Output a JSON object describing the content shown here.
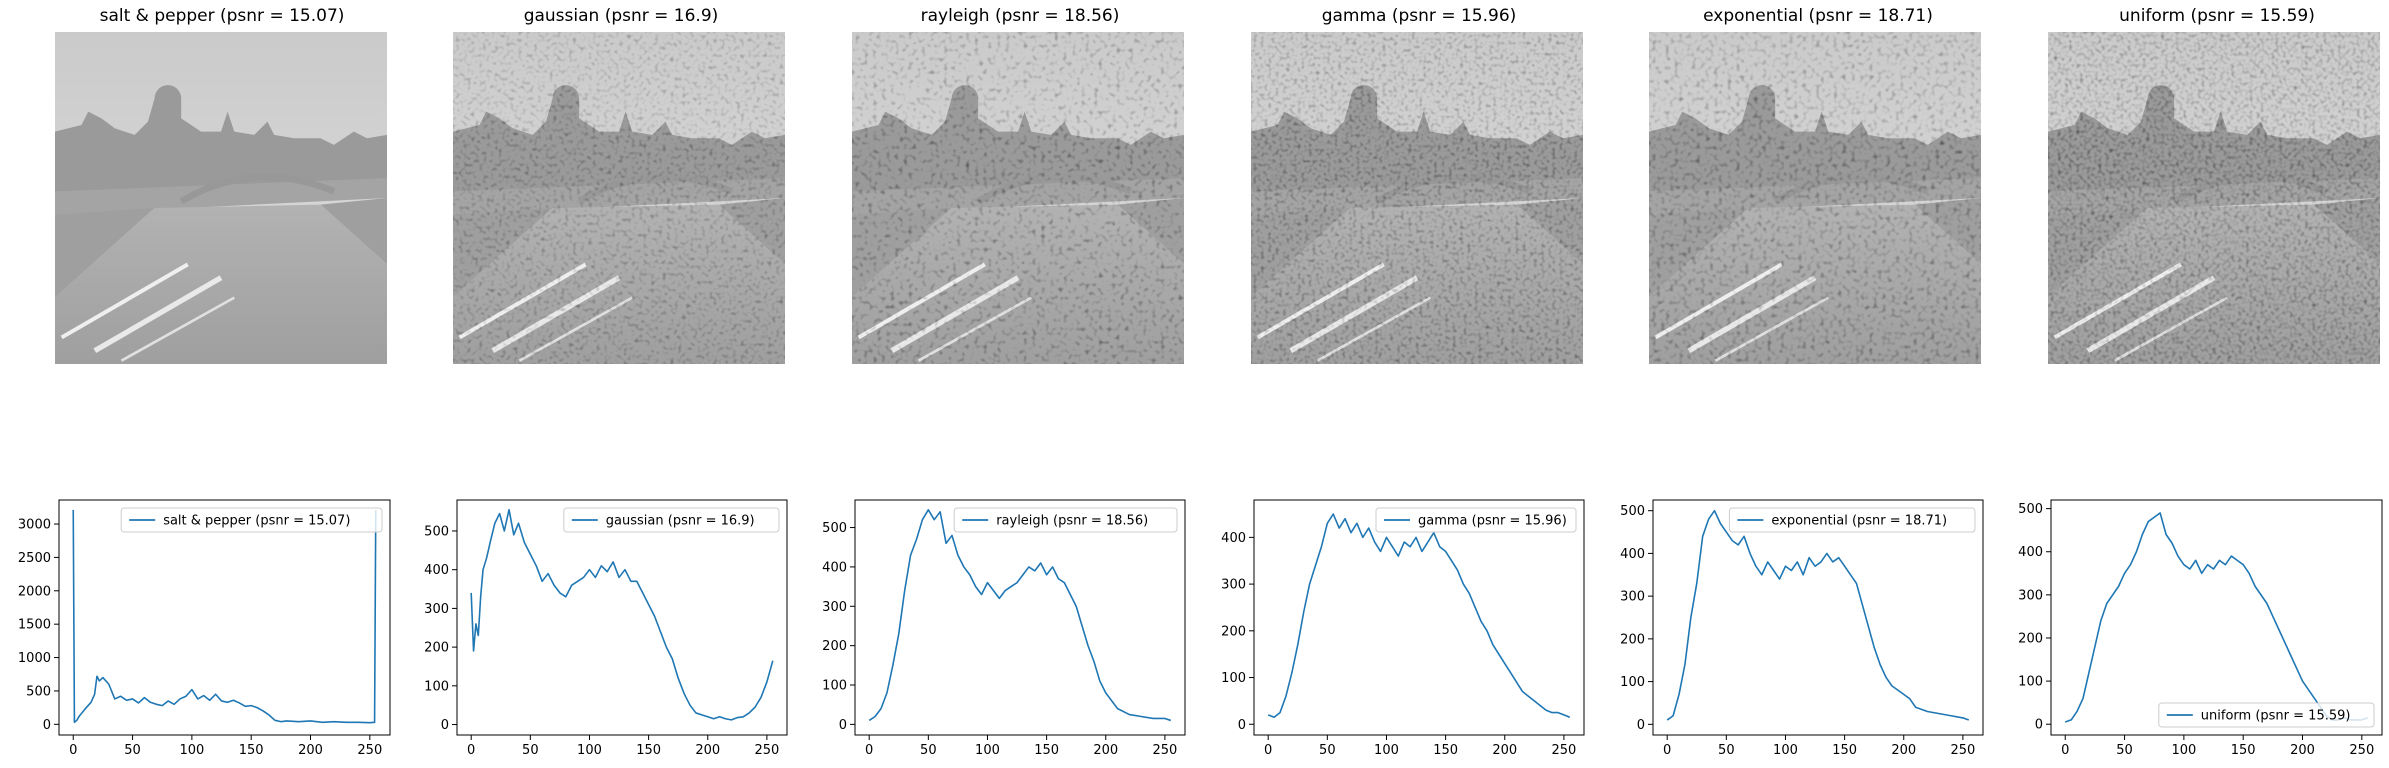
{
  "figure": {
    "image_titles": [
      "salt & pepper (psnr = 15.07)",
      "gaussian (psnr = 16.9)",
      "rayleigh (psnr = 18.56)",
      "gamma (psnr = 15.96)",
      "exponential (psnr = 18.71)",
      "uniform (psnr = 15.59)"
    ],
    "line_color": "#1f77b4"
  },
  "chart_data": [
    {
      "type": "line",
      "legend": "salt & pepper (psnr = 15.07)",
      "legend_position": "upper-right",
      "xlim": [
        -12,
        267
      ],
      "ylim": [
        -160,
        3360
      ],
      "xticks": [
        0,
        50,
        100,
        150,
        200,
        250
      ],
      "yticks": [
        0,
        500,
        1000,
        1500,
        2000,
        2500,
        3000,
        3500
      ],
      "yticks_labeled": [
        0,
        500,
        1000,
        1500,
        2000,
        2500,
        3000
      ],
      "x": [
        0,
        1,
        3,
        5,
        10,
        15,
        18,
        20,
        22,
        25,
        30,
        35,
        40,
        45,
        50,
        55,
        60,
        65,
        70,
        75,
        80,
        85,
        90,
        95,
        100,
        105,
        110,
        115,
        120,
        125,
        130,
        135,
        140,
        145,
        150,
        155,
        160,
        165,
        170,
        175,
        180,
        190,
        200,
        210,
        220,
        230,
        240,
        250,
        254,
        255
      ],
      "y": [
        3210,
        30,
        60,
        120,
        230,
        330,
        450,
        720,
        650,
        700,
        600,
        380,
        420,
        360,
        380,
        320,
        400,
        330,
        300,
        280,
        350,
        300,
        380,
        420,
        520,
        380,
        430,
        360,
        450,
        350,
        330,
        360,
        320,
        270,
        280,
        250,
        200,
        140,
        60,
        40,
        50,
        40,
        50,
        30,
        40,
        30,
        30,
        25,
        30,
        3210
      ]
    },
    {
      "type": "line",
      "legend": "gaussian (psnr = 16.9)",
      "legend_position": "upper-right",
      "xlim": [
        -12,
        267
      ],
      "ylim": [
        -27,
        580
      ],
      "xticks": [
        0,
        50,
        100,
        150,
        200,
        250
      ],
      "yticks": [
        0,
        100,
        200,
        300,
        400,
        500
      ],
      "x": [
        0,
        2,
        4,
        6,
        8,
        10,
        13,
        16,
        20,
        24,
        28,
        32,
        36,
        40,
        45,
        50,
        55,
        60,
        65,
        70,
        75,
        80,
        85,
        90,
        95,
        100,
        105,
        110,
        115,
        120,
        125,
        130,
        135,
        140,
        145,
        150,
        155,
        160,
        165,
        170,
        175,
        180,
        185,
        190,
        195,
        200,
        205,
        210,
        215,
        220,
        225,
        230,
        235,
        240,
        245,
        250,
        255
      ],
      "y": [
        340,
        190,
        260,
        230,
        330,
        400,
        430,
        470,
        520,
        545,
        500,
        555,
        490,
        520,
        470,
        440,
        410,
        370,
        390,
        360,
        340,
        330,
        360,
        370,
        380,
        400,
        380,
        410,
        395,
        420,
        380,
        400,
        370,
        370,
        340,
        310,
        280,
        240,
        200,
        170,
        120,
        80,
        50,
        30,
        25,
        20,
        15,
        20,
        15,
        12,
        18,
        20,
        30,
        45,
        70,
        110,
        165
      ]
    },
    {
      "type": "line",
      "legend": "rayleigh (psnr = 18.56)",
      "legend_position": "upper-right",
      "xlim": [
        -12,
        267
      ],
      "ylim": [
        -27,
        570
      ],
      "xticks": [
        0,
        50,
        100,
        150,
        200,
        250
      ],
      "yticks": [
        0,
        100,
        200,
        300,
        400,
        500
      ],
      "x": [
        0,
        5,
        10,
        15,
        20,
        25,
        30,
        35,
        40,
        45,
        50,
        55,
        60,
        65,
        70,
        75,
        80,
        85,
        90,
        95,
        100,
        105,
        110,
        115,
        120,
        125,
        130,
        135,
        140,
        145,
        150,
        155,
        160,
        165,
        170,
        175,
        180,
        185,
        190,
        195,
        200,
        205,
        210,
        220,
        230,
        240,
        250,
        255
      ],
      "y": [
        10,
        20,
        40,
        80,
        150,
        230,
        340,
        430,
        470,
        520,
        545,
        520,
        540,
        460,
        480,
        430,
        400,
        380,
        350,
        330,
        360,
        340,
        320,
        340,
        350,
        360,
        380,
        400,
        390,
        410,
        380,
        400,
        370,
        360,
        330,
        300,
        250,
        200,
        160,
        110,
        80,
        60,
        40,
        25,
        20,
        15,
        15,
        10
      ]
    },
    {
      "type": "line",
      "legend": "gamma (psnr = 15.96)",
      "legend_position": "upper-right",
      "xlim": [
        -12,
        267
      ],
      "ylim": [
        -23,
        480
      ],
      "xticks": [
        0,
        50,
        100,
        150,
        200,
        250
      ],
      "yticks": [
        0,
        100,
        200,
        300,
        400
      ],
      "x": [
        0,
        5,
        10,
        15,
        20,
        25,
        30,
        35,
        40,
        45,
        50,
        55,
        60,
        65,
        70,
        75,
        80,
        85,
        90,
        95,
        100,
        105,
        110,
        115,
        120,
        125,
        130,
        135,
        140,
        145,
        150,
        155,
        160,
        165,
        170,
        175,
        180,
        185,
        190,
        195,
        200,
        205,
        210,
        215,
        220,
        225,
        230,
        235,
        240,
        245,
        250,
        255
      ],
      "y": [
        20,
        15,
        25,
        60,
        110,
        170,
        240,
        300,
        340,
        380,
        430,
        450,
        420,
        440,
        410,
        430,
        400,
        420,
        390,
        370,
        400,
        380,
        360,
        390,
        380,
        400,
        370,
        390,
        410,
        380,
        370,
        350,
        330,
        300,
        280,
        250,
        220,
        200,
        170,
        150,
        130,
        110,
        90,
        70,
        60,
        50,
        40,
        30,
        25,
        25,
        20,
        15
      ]
    },
    {
      "type": "line",
      "legend": "exponential (psnr = 18.71)",
      "legend_position": "upper-right",
      "xlim": [
        -12,
        267
      ],
      "ylim": [
        -25,
        525
      ],
      "xticks": [
        0,
        50,
        100,
        150,
        200,
        250
      ],
      "yticks": [
        0,
        100,
        200,
        300,
        400,
        500
      ],
      "x": [
        0,
        5,
        10,
        15,
        20,
        25,
        30,
        35,
        40,
        45,
        50,
        55,
        60,
        65,
        70,
        75,
        80,
        85,
        90,
        95,
        100,
        105,
        110,
        115,
        120,
        125,
        130,
        135,
        140,
        145,
        150,
        155,
        160,
        165,
        170,
        175,
        180,
        185,
        190,
        195,
        200,
        205,
        210,
        220,
        230,
        240,
        250,
        255
      ],
      "y": [
        10,
        20,
        70,
        140,
        250,
        330,
        440,
        480,
        500,
        470,
        450,
        430,
        420,
        440,
        400,
        370,
        350,
        380,
        360,
        340,
        370,
        360,
        380,
        350,
        390,
        370,
        380,
        400,
        380,
        390,
        370,
        350,
        330,
        280,
        230,
        180,
        140,
        110,
        90,
        80,
        70,
        60,
        40,
        30,
        25,
        20,
        15,
        10
      ]
    },
    {
      "type": "line",
      "legend": "uniform (psnr = 15.59)",
      "legend_position": "lower-right",
      "xlim": [
        -12,
        267
      ],
      "ylim": [
        -25,
        520
      ],
      "xticks": [
        0,
        50,
        100,
        150,
        200,
        250
      ],
      "yticks": [
        0,
        100,
        200,
        300,
        400,
        500
      ],
      "x": [
        0,
        5,
        10,
        15,
        20,
        25,
        30,
        35,
        40,
        45,
        50,
        55,
        60,
        65,
        70,
        75,
        80,
        85,
        90,
        95,
        100,
        105,
        110,
        115,
        120,
        125,
        130,
        135,
        140,
        145,
        150,
        155,
        160,
        165,
        170,
        175,
        180,
        185,
        190,
        195,
        200,
        205,
        210,
        215,
        220,
        225,
        230,
        235,
        240,
        245,
        250,
        255
      ],
      "y": [
        5,
        10,
        30,
        60,
        120,
        180,
        240,
        280,
        300,
        320,
        350,
        370,
        400,
        440,
        470,
        480,
        490,
        440,
        420,
        390,
        370,
        360,
        380,
        350,
        370,
        360,
        380,
        370,
        390,
        380,
        370,
        350,
        320,
        300,
        280,
        250,
        220,
        190,
        160,
        130,
        100,
        80,
        60,
        40,
        20,
        10,
        10,
        15,
        10,
        10,
        10,
        15
      ]
    }
  ]
}
